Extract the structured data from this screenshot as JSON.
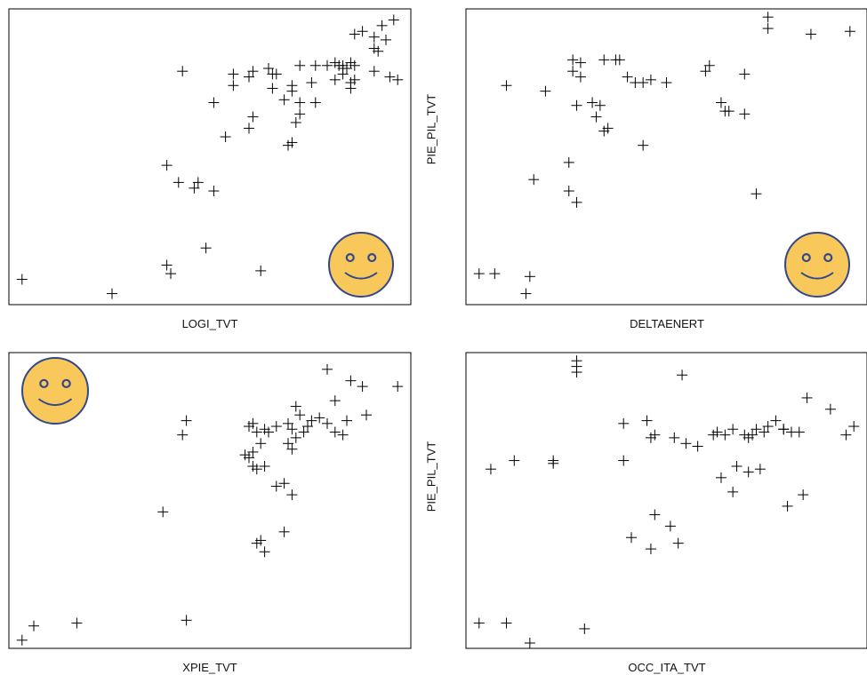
{
  "colors": {
    "frame": "#000000",
    "marker": "#000000",
    "smiley_fill": "#F8C85A",
    "smiley_stroke": "#33488A"
  },
  "chart_data": [
    {
      "type": "scatter",
      "xlabel": "LOGI_TVT",
      "ylabel": "",
      "xlim": [
        0,
        100
      ],
      "ylim": [
        0,
        100
      ],
      "decoration": "smiley-bottom-right",
      "points": [
        [
          2,
          7
        ],
        [
          25,
          2
        ],
        [
          40,
          9
        ],
        [
          63,
          10
        ],
        [
          39,
          12
        ],
        [
          49,
          18
        ],
        [
          46,
          39
        ],
        [
          51,
          38
        ],
        [
          47,
          41
        ],
        [
          39,
          47
        ],
        [
          42,
          41
        ],
        [
          54,
          57
        ],
        [
          71,
          55
        ],
        [
          70,
          54
        ],
        [
          72,
          62
        ],
        [
          73,
          65
        ],
        [
          60,
          60
        ],
        [
          61,
          64
        ],
        [
          51,
          69
        ],
        [
          69,
          70
        ],
        [
          71,
          73
        ],
        [
          73,
          69
        ],
        [
          77,
          69
        ],
        [
          71,
          75
        ],
        [
          66,
          74
        ],
        [
          76,
          76
        ],
        [
          67,
          79
        ],
        [
          65,
          81
        ],
        [
          56,
          79
        ],
        [
          60,
          78
        ],
        [
          61,
          80
        ],
        [
          56,
          75
        ],
        [
          73,
          82
        ],
        [
          77,
          82
        ],
        [
          82,
          77
        ],
        [
          84,
          79
        ],
        [
          86,
          74
        ],
        [
          86,
          76
        ],
        [
          87,
          77
        ],
        [
          82,
          83
        ],
        [
          84,
          82
        ],
        [
          43,
          80
        ],
        [
          66,
          79
        ],
        [
          80,
          82
        ],
        [
          86,
          83
        ],
        [
          84,
          81
        ],
        [
          85,
          81
        ],
        [
          87,
          82
        ],
        [
          83,
          82
        ],
        [
          92,
          80
        ],
        [
          96,
          78
        ],
        [
          98,
          77
        ],
        [
          93,
          87
        ],
        [
          92,
          88
        ],
        [
          95,
          91
        ],
        [
          92,
          92
        ],
        [
          89,
          94
        ],
        [
          87,
          93
        ],
        [
          94,
          96
        ],
        [
          97,
          98
        ]
      ]
    },
    {
      "type": "scatter",
      "xlabel": "DELTAENERT",
      "ylabel": "PIE_PIL_TVT",
      "xlim": [
        0,
        100
      ],
      "ylim": [
        0,
        100
      ],
      "decoration": "smiley-bottom-right",
      "points": [
        [
          2,
          9
        ],
        [
          6,
          9
        ],
        [
          15,
          8
        ],
        [
          14,
          2
        ],
        [
          16,
          42
        ],
        [
          25,
          38
        ],
        [
          27,
          34
        ],
        [
          25,
          48
        ],
        [
          9,
          75
        ],
        [
          19,
          73
        ],
        [
          26,
          84
        ],
        [
          28,
          83
        ],
        [
          26,
          80
        ],
        [
          28,
          78
        ],
        [
          34,
          84
        ],
        [
          37,
          84
        ],
        [
          38,
          84
        ],
        [
          40,
          78
        ],
        [
          42,
          76
        ],
        [
          44,
          76
        ],
        [
          27,
          68
        ],
        [
          31,
          69
        ],
        [
          33,
          68
        ],
        [
          32,
          64
        ],
        [
          34,
          59
        ],
        [
          35,
          60
        ],
        [
          44,
          54
        ],
        [
          46,
          77
        ],
        [
          50,
          76
        ],
        [
          60,
          80
        ],
        [
          61,
          82
        ],
        [
          70,
          79
        ],
        [
          64,
          69
        ],
        [
          65,
          66
        ],
        [
          70,
          65
        ],
        [
          66,
          66
        ],
        [
          73,
          37
        ],
        [
          76,
          95
        ],
        [
          87,
          93
        ],
        [
          97,
          94
        ],
        [
          76,
          99
        ]
      ]
    },
    {
      "type": "scatter",
      "xlabel": "XPIE_TVT",
      "ylabel": "",
      "xlim": [
        0,
        100
      ],
      "ylim": [
        0,
        100
      ],
      "decoration": "smiley-top-left",
      "points": [
        [
          2,
          1
        ],
        [
          5,
          6
        ],
        [
          16,
          7
        ],
        [
          44,
          8
        ],
        [
          38,
          46
        ],
        [
          62,
          35
        ],
        [
          63,
          36
        ],
        [
          64,
          32
        ],
        [
          69,
          39
        ],
        [
          67,
          55
        ],
        [
          69,
          56
        ],
        [
          71,
          52
        ],
        [
          43,
          73
        ],
        [
          44,
          78
        ],
        [
          59,
          66
        ],
        [
          60,
          65
        ],
        [
          61,
          62
        ],
        [
          62,
          61
        ],
        [
          64,
          62
        ],
        [
          61,
          67
        ],
        [
          63,
          70
        ],
        [
          62,
          74
        ],
        [
          60,
          76
        ],
        [
          61,
          77
        ],
        [
          64,
          75
        ],
        [
          65,
          74
        ],
        [
          67,
          76
        ],
        [
          70,
          77
        ],
        [
          71,
          75
        ],
        [
          73,
          80
        ],
        [
          70,
          70
        ],
        [
          71,
          68
        ],
        [
          72,
          72
        ],
        [
          74,
          74
        ],
        [
          75,
          76
        ],
        [
          76,
          78
        ],
        [
          78,
          79
        ],
        [
          80,
          77
        ],
        [
          82,
          74
        ],
        [
          84,
          73
        ],
        [
          85,
          78
        ],
        [
          82,
          85
        ],
        [
          90,
          80
        ],
        [
          72,
          83
        ],
        [
          80,
          96
        ],
        [
          86,
          92
        ],
        [
          89,
          90
        ],
        [
          98,
          90
        ]
      ]
    },
    {
      "type": "scatter",
      "xlabel": "OCC_ITA_TVT",
      "ylabel": "PIE_PIL_TVT",
      "xlim": [
        0,
        100
      ],
      "ylim": [
        0,
        100
      ],
      "decoration": "none",
      "points": [
        [
          2,
          7
        ],
        [
          9,
          7
        ],
        [
          15,
          0
        ],
        [
          29,
          5
        ],
        [
          5,
          61
        ],
        [
          11,
          64
        ],
        [
          21,
          64
        ],
        [
          21,
          63
        ],
        [
          27,
          99
        ],
        [
          27,
          97
        ],
        [
          27,
          95
        ],
        [
          39,
          64
        ],
        [
          39,
          77
        ],
        [
          45,
          78
        ],
        [
          47,
          73
        ],
        [
          46,
          72
        ],
        [
          52,
          72
        ],
        [
          55,
          70
        ],
        [
          58,
          69
        ],
        [
          62,
          73
        ],
        [
          63,
          74
        ],
        [
          65,
          73
        ],
        [
          67,
          75
        ],
        [
          70,
          73
        ],
        [
          71,
          72
        ],
        [
          73,
          75
        ],
        [
          72,
          73
        ],
        [
          75,
          74
        ],
        [
          76,
          76
        ],
        [
          78,
          78
        ],
        [
          80,
          75
        ],
        [
          82,
          74
        ],
        [
          84,
          74
        ],
        [
          80,
          75
        ],
        [
          68,
          62
        ],
        [
          64,
          58
        ],
        [
          67,
          53
        ],
        [
          71,
          60
        ],
        [
          74,
          61
        ],
        [
          85,
          52
        ],
        [
          81,
          48
        ],
        [
          47,
          45
        ],
        [
          41,
          37
        ],
        [
          46,
          33
        ],
        [
          53,
          35
        ],
        [
          51,
          41
        ],
        [
          86,
          86
        ],
        [
          92,
          82
        ],
        [
          98,
          76
        ],
        [
          96,
          73
        ],
        [
          54,
          94
        ]
      ]
    }
  ]
}
